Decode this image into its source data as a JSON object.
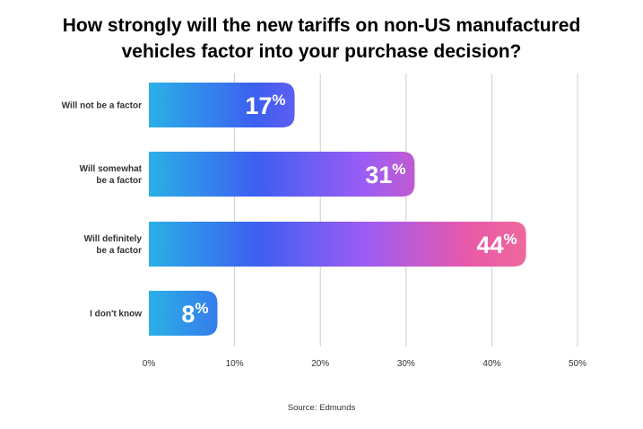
{
  "chart_data": {
    "type": "bar",
    "orientation": "horizontal",
    "title_lines": [
      "How strongly will the new tariffs on non-US manufactured",
      "vehicles factor into your purchase decision?"
    ],
    "categories": [
      [
        "Will not be a factor"
      ],
      [
        "Will somewhat",
        "be a factor"
      ],
      [
        "Will definitely",
        "be a factor"
      ],
      [
        "I don't know"
      ]
    ],
    "values": [
      17,
      31,
      44,
      8
    ],
    "value_suffix": "%",
    "xlim": [
      0,
      50
    ],
    "xticks": [
      0,
      10,
      20,
      30,
      40,
      50
    ],
    "xtick_labels": [
      "0%",
      "10%",
      "20%",
      "30%",
      "40%",
      "50%"
    ],
    "grid": true,
    "source": "Source: Edmunds"
  },
  "colors": {
    "bar_gradient": [
      "#2ab0e6",
      "#3d5ff0",
      "#9b5cf6",
      "#e95aa8",
      "#f27593"
    ],
    "grid": "#cccccc",
    "label": "#333333",
    "value_text": "#ffffff"
  }
}
